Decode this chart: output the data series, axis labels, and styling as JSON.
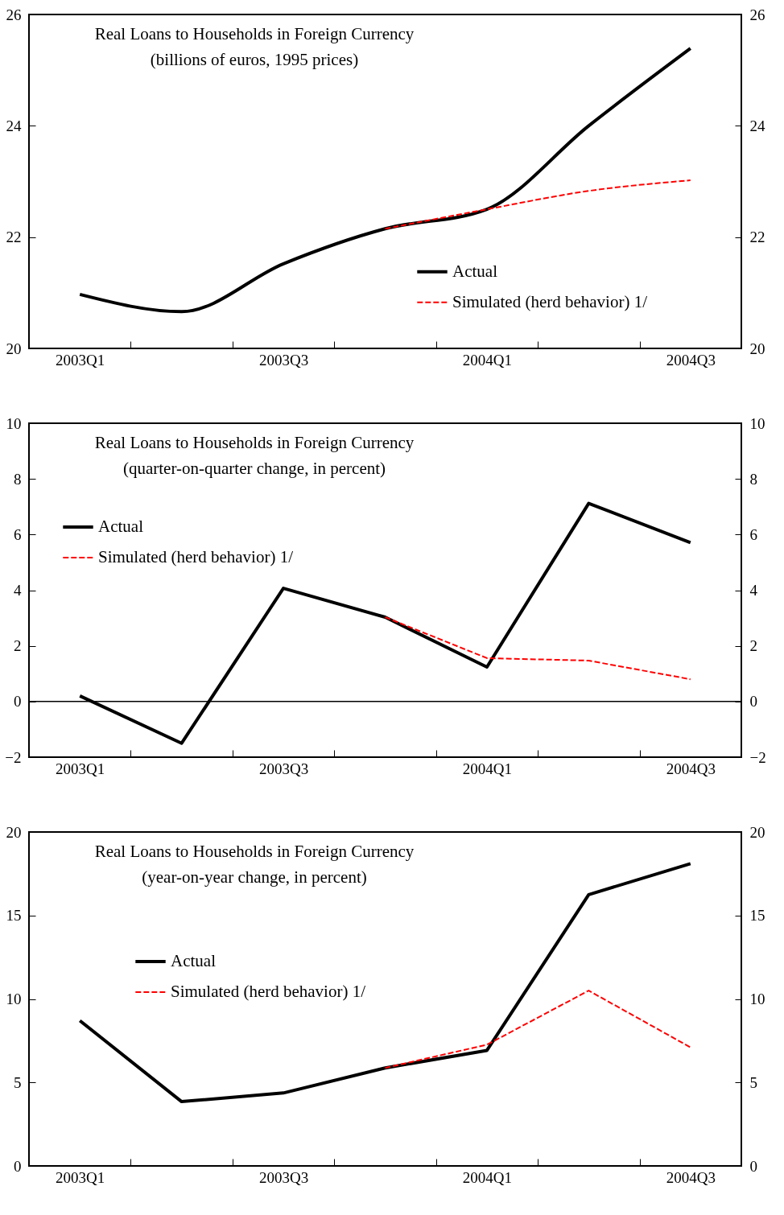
{
  "chart_data": [
    {
      "type": "line",
      "title": "Real Loans to Households in Foreign Currency",
      "subtitle": "(billions of euros, 1995 prices)",
      "categories": [
        "2003Q1",
        null,
        "2003Q3",
        null,
        "2004Q1",
        null,
        "2004Q3"
      ],
      "series": [
        {
          "name": "Actual",
          "color": "#000000",
          "line_style": "solid",
          "values": [
            20.97,
            20.66,
            21.52,
            22.15,
            22.5,
            24.0,
            25.39
          ]
        },
        {
          "name": "Simulated (herd behavior) 1/",
          "color": "#ff0000",
          "line_style": "dashed",
          "values": [
            null,
            null,
            null,
            22.15,
            22.5,
            22.83,
            23.02
          ]
        }
      ],
      "ylim": [
        20,
        26
      ],
      "yticks": [
        20,
        22,
        24,
        26
      ],
      "y2lim": [
        20,
        26
      ],
      "y2ticks": [
        20,
        22,
        24,
        26
      ],
      "grid": false,
      "legend": "right",
      "marker": "none"
    },
    {
      "type": "line",
      "title": "Real Loans to Households in Foreign Currency",
      "subtitle": "(quarter-on-quarter change, in percent)",
      "categories": [
        "2003Q1",
        null,
        "2003Q3",
        null,
        "2004Q1",
        null,
        "2004Q3"
      ],
      "series": [
        {
          "name": "Actual",
          "color": "#000000",
          "line_style": "solid",
          "values": [
            0.2,
            -1.5,
            4.07,
            3.03,
            1.24,
            7.12,
            5.71
          ]
        },
        {
          "name": "Simulated (herd behavior) 1/",
          "color": "#ff0000",
          "line_style": "dashed",
          "values": [
            null,
            null,
            null,
            3.03,
            1.56,
            1.47,
            0.8
          ]
        }
      ],
      "ylim": [
        -2,
        10
      ],
      "yticks": [
        -2,
        0,
        2,
        4,
        6,
        8,
        10
      ],
      "y2lim": [
        -2,
        10
      ],
      "y2ticks": [
        -2,
        0,
        2,
        4,
        6,
        8,
        10
      ],
      "ref_lines": [
        {
          "axis": "y",
          "value": 0,
          "color": "#000000"
        }
      ],
      "grid": false,
      "legend": "top left",
      "marker": "none"
    },
    {
      "type": "line",
      "title": "Real Loans to Households in Foreign Currency",
      "subtitle": "(year-on-year change, in percent)",
      "categories": [
        "2003Q1",
        null,
        "2003Q3",
        null,
        "2004Q1",
        null,
        "2004Q3"
      ],
      "series": [
        {
          "name": "Actual",
          "color": "#000000",
          "line_style": "solid",
          "values": [
            8.7,
            3.85,
            4.37,
            5.87,
            6.92,
            16.25,
            18.1
          ]
        },
        {
          "name": "Simulated (herd behavior) 1/",
          "color": "#ff0000",
          "line_style": "dashed",
          "values": [
            null,
            null,
            null,
            5.87,
            7.26,
            10.5,
            7.1
          ]
        }
      ],
      "ylim": [
        0,
        20
      ],
      "yticks": [
        0,
        5,
        10,
        15,
        20
      ],
      "y2lim": [
        0,
        20
      ],
      "y2ticks": [
        0,
        5,
        10,
        15,
        20
      ],
      "grid": false,
      "legend": "left",
      "marker": "none"
    }
  ]
}
